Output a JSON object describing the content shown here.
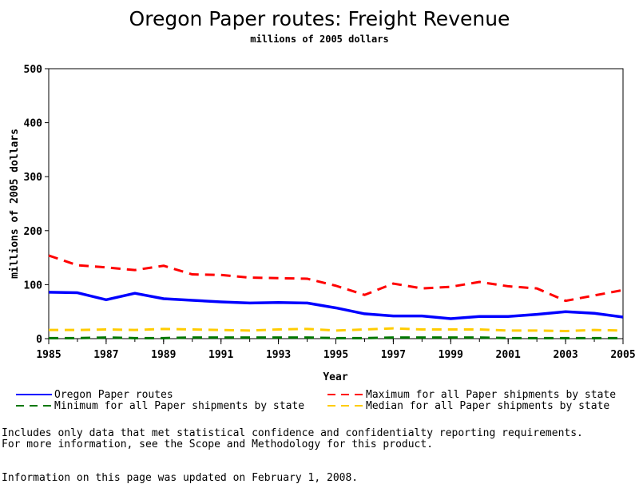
{
  "chart_data": {
    "type": "line",
    "title": "Oregon Paper routes: Freight Revenue",
    "subtitle": "millions of 2005 dollars",
    "xlabel": "Year",
    "ylabel": "millions of 2005 dollars",
    "x": [
      1985,
      1986,
      1987,
      1988,
      1989,
      1990,
      1991,
      1992,
      1993,
      1994,
      1995,
      1996,
      1997,
      1998,
      1999,
      2000,
      2001,
      2002,
      2003,
      2004,
      2005
    ],
    "xlim": [
      1985,
      2005
    ],
    "ylim": [
      0,
      500
    ],
    "xticks": [
      "1985",
      "1987",
      "1989",
      "1991",
      "1993",
      "1995",
      "1997",
      "1999",
      "2001",
      "2003",
      "2005"
    ],
    "yticks": [
      "0",
      "100",
      "200",
      "300",
      "400",
      "500"
    ],
    "grid": false,
    "legend_position": "bottom",
    "series": [
      {
        "name": "Oregon Paper routes",
        "color": "#0000ff",
        "style": "solid",
        "values": [
          86,
          85,
          72,
          84,
          74,
          71,
          68,
          66,
          67,
          66,
          57,
          46,
          42,
          42,
          37,
          41,
          41,
          45,
          50,
          47,
          40
        ]
      },
      {
        "name": "Maximum for all Paper shipments by state",
        "color": "#ff0000",
        "style": "dashed",
        "values": [
          154,
          136,
          132,
          127,
          135,
          119,
          118,
          113,
          112,
          111,
          98,
          81,
          102,
          93,
          96,
          105,
          97,
          93,
          70,
          80,
          90
        ]
      },
      {
        "name": "Minimum for all Paper shipments by state",
        "color": "#007700",
        "style": "dashed",
        "values": [
          1,
          1,
          2,
          1,
          1,
          2,
          2,
          2,
          2,
          2,
          1,
          1,
          2,
          2,
          2,
          2,
          1,
          1,
          1,
          1,
          1
        ]
      },
      {
        "name": "Median for all Paper shipments by state",
        "color": "#ffcc00",
        "style": "dashed",
        "values": [
          16,
          16,
          17,
          16,
          18,
          17,
          16,
          15,
          17,
          18,
          15,
          17,
          19,
          17,
          17,
          17,
          15,
          15,
          14,
          16,
          15
        ]
      }
    ]
  },
  "notes": {
    "line1": "Includes only data that met statistical confidence and confidentialty reporting requirements.",
    "line2": "For more information, see the Scope and Methodology for this product.",
    "updated": "Information on this page was updated on February 1, 2008."
  }
}
